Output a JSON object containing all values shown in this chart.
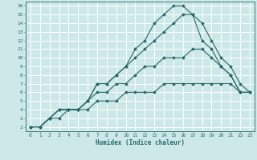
{
  "xlabel": "Humidex (Indice chaleur)",
  "background_color": "#cce8e8",
  "line_color": "#2a6868",
  "grid_color": "#b0d8d8",
  "xlim": [
    -0.5,
    23.5
  ],
  "ylim": [
    1.5,
    16.5
  ],
  "xticks": [
    0,
    1,
    2,
    3,
    4,
    5,
    6,
    7,
    8,
    9,
    10,
    11,
    12,
    13,
    14,
    15,
    16,
    17,
    18,
    19,
    20,
    21,
    22,
    23
  ],
  "yticks": [
    2,
    3,
    4,
    5,
    6,
    7,
    8,
    9,
    10,
    11,
    12,
    13,
    14,
    15,
    16
  ],
  "series": [
    [
      2,
      2,
      3,
      4,
      4,
      4,
      5,
      7,
      7,
      8,
      9,
      11,
      12,
      14,
      15,
      16,
      16,
      15,
      12,
      11,
      9,
      8,
      6,
      6
    ],
    [
      2,
      2,
      3,
      4,
      4,
      4,
      5,
      7,
      7,
      8,
      9,
      10,
      11,
      12,
      13,
      14,
      15,
      15,
      14,
      12,
      10,
      9,
      7,
      6
    ],
    [
      2,
      2,
      3,
      4,
      4,
      4,
      5,
      6,
      6,
      7,
      7,
      8,
      9,
      9,
      10,
      10,
      10,
      11,
      11,
      10,
      9,
      8,
      6,
      6
    ],
    [
      2,
      2,
      3,
      3,
      4,
      4,
      4,
      5,
      5,
      5,
      6,
      6,
      6,
      6,
      7,
      7,
      7,
      7,
      7,
      7,
      7,
      7,
      6,
      6
    ]
  ]
}
